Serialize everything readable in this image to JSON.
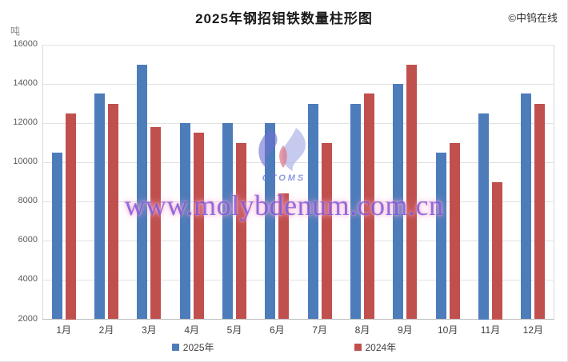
{
  "page": {
    "title": "2025年钢招钼铁数量柱形图",
    "copyright": "©中钨在线",
    "unit_label": "吨"
  },
  "watermark": {
    "logo_text": "CTOMS",
    "site_text": "www.molybdenum.com.cn"
  },
  "chart_data": {
    "type": "bar",
    "title": "2025年钢招钼铁数量柱形图",
    "xlabel": "",
    "ylabel": "吨",
    "categories": [
      "1月",
      "2月",
      "3月",
      "4月",
      "5月",
      "6月",
      "7月",
      "8月",
      "9月",
      "10月",
      "11月",
      "12月"
    ],
    "series": [
      {
        "name": "2025年",
        "color": "#4D7CBB",
        "values": [
          10500,
          13500,
          15000,
          12000,
          12000,
          12000,
          13000,
          13000,
          14000,
          10500,
          12500,
          13500
        ]
      },
      {
        "name": "2024年",
        "color": "#C0504D",
        "values": [
          12500,
          13000,
          11800,
          11500,
          11000,
          8400,
          11000,
          13500,
          15000,
          11000,
          9000,
          13000
        ]
      }
    ],
    "ylim": [
      2000,
      16000
    ],
    "ytick_step": 2000,
    "ytick_labels": [
      "2000",
      "4000",
      "6000",
      "8000",
      "10000",
      "12000",
      "14000",
      "16000"
    ],
    "grid": true,
    "legend_position": "bottom"
  }
}
